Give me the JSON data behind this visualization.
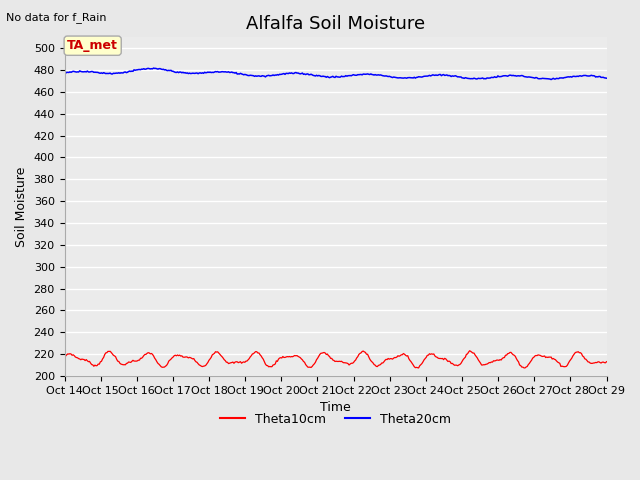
{
  "title": "Alfalfa Soil Moisture",
  "subtitle": "No data for f_Rain",
  "ylabel": "Soil Moisture",
  "xlabel": "Time",
  "ylim": [
    200,
    510
  ],
  "yticks": [
    200,
    220,
    240,
    260,
    280,
    300,
    320,
    340,
    360,
    380,
    400,
    420,
    440,
    460,
    480,
    500
  ],
  "xtick_labels": [
    "Oct 14",
    "Oct 15",
    "Oct 16",
    "Oct 17",
    "Oct 18",
    "Oct 19",
    "Oct 20",
    "Oct 21",
    "Oct 22",
    "Oct 23",
    "Oct 24",
    "Oct 25",
    "Oct 26",
    "Oct 27",
    "Oct 28",
    "Oct 29"
  ],
  "theta10_color": "#ff0000",
  "theta20_color": "#0000ff",
  "legend_theta10": "Theta10cm",
  "legend_theta20": "Theta20cm",
  "ta_met_label": "TA_met",
  "ta_met_bg": "#ffffcc",
  "ta_met_border": "#aaaaaa",
  "ta_met_text_color": "#cc0000",
  "bg_color": "#e8e8e8",
  "plot_bg": "#ebebeb",
  "n_points": 500,
  "title_fontsize": 13,
  "axis_fontsize": 9,
  "tick_fontsize": 8
}
